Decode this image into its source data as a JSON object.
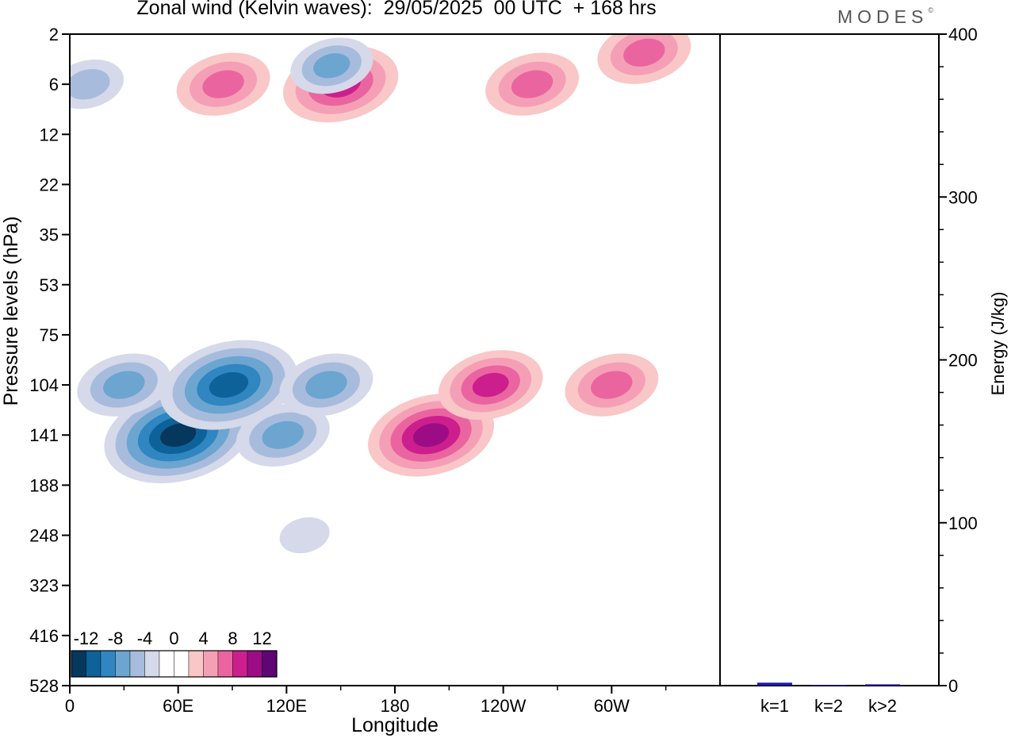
{
  "header": {
    "title": "Zonal wind (Kelvin waves):  29/05/2025  00 UTC  + 168 hrs",
    "logo": "MODES",
    "logo_mark": "©"
  },
  "colors": {
    "neg": [
      "#06375c",
      "#0e629a",
      "#2f86c0",
      "#6ca5d0",
      "#a7bcdc",
      "#d5d9ea"
    ],
    "zero": "#ffffff",
    "pos": [
      "#f9c7c7",
      "#f59fb6",
      "#ea65a0",
      "#cc1f8d",
      "#9c0d85",
      "#5e0674"
    ],
    "energy_bar": "#1a1aa6"
  },
  "chart_data": [
    {
      "type": "heatmap",
      "title": "Zonal wind (Kelvin waves):  29/05/2025  00 UTC  + 168 hrs",
      "xlabel": "Longitude",
      "ylabel": "Pressure levels (hPa)",
      "x_ticks": [
        "0",
        "60E",
        "120E",
        "180",
        "120W",
        "60W"
      ],
      "x_range": [
        0,
        360
      ],
      "y_ticks": [
        "2",
        "6",
        "12",
        "22",
        "35",
        "53",
        "75",
        "104",
        "141",
        "188",
        "248",
        "323",
        "416",
        "528"
      ],
      "legend": {
        "placement": "bottom-left",
        "labels": [
          "-12",
          "-8",
          "-4",
          "0",
          "4",
          "8",
          "12"
        ],
        "levels": [
          -14,
          -12,
          -10,
          -8,
          -6,
          -4,
          -2,
          2,
          4,
          6,
          8,
          10,
          12,
          14
        ]
      },
      "features": [
        {
          "lon": 60,
          "p": 141,
          "value": -11
        },
        {
          "lon": 88,
          "p": 104,
          "value": -10
        },
        {
          "lon": 118,
          "p": 141,
          "value": -6
        },
        {
          "lon": 142,
          "p": 104,
          "value": -6
        },
        {
          "lon": 30,
          "p": 104,
          "value": -6
        },
        {
          "lon": 130,
          "p": 248,
          "value": -2
        },
        {
          "lon": 200,
          "p": 141,
          "value": 9
        },
        {
          "lon": 233,
          "p": 104,
          "value": 7
        },
        {
          "lon": 300,
          "p": 104,
          "value": 6
        },
        {
          "lon": 85,
          "p": 6,
          "value": 6
        },
        {
          "lon": 150,
          "p": 6,
          "value": 8
        },
        {
          "lon": 256,
          "p": 6,
          "value": 6
        },
        {
          "lon": 318,
          "p": 3,
          "value": 6
        },
        {
          "lon": 10,
          "p": 6,
          "value": -4
        },
        {
          "lon": 145,
          "p": 4,
          "value": -5
        }
      ]
    },
    {
      "type": "bar",
      "categories": [
        "k=1",
        "k=2",
        "k>2"
      ],
      "values": [
        1.8,
        0.4,
        0.8
      ],
      "ylabel": "Energy (J/kg)",
      "ylim": [
        0,
        400
      ],
      "y_ticks": [
        0,
        100,
        200,
        300,
        400
      ]
    }
  ]
}
